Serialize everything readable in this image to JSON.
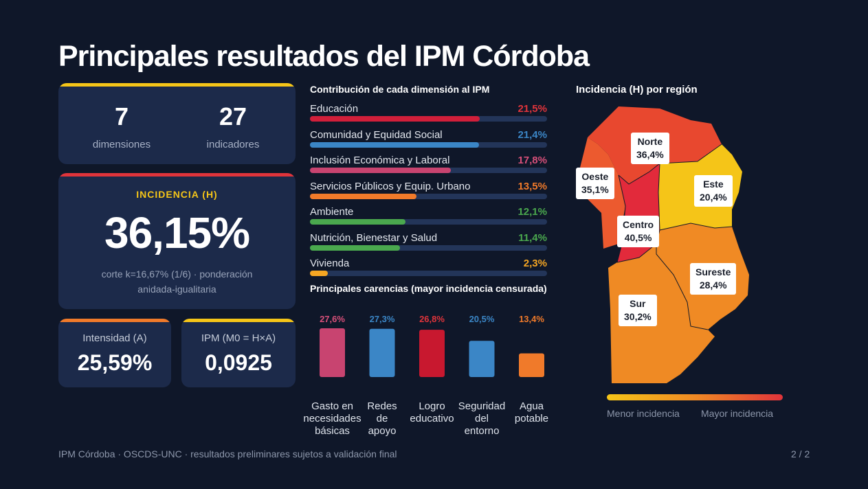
{
  "title": "Principales resultados del IPM Córdoba",
  "colors": {
    "background": "#0f1729",
    "card": "#1c2a4a",
    "yellow": "#f5c518",
    "red": "#e0343b",
    "orange": "#f07a2a"
  },
  "stats": {
    "dimensiones": {
      "value": "7",
      "label": "dimensiones"
    },
    "indicadores": {
      "value": "27",
      "label": "indicadores"
    }
  },
  "incidencia": {
    "label": "INCIDENCIA (H)",
    "value": "36,15%",
    "note_line1": "corte k=16,67% (1/6) · ponderación",
    "note_line2": "anidada-igualitaria"
  },
  "intensidad": {
    "label": "Intensidad (A)",
    "value": "25,59%"
  },
  "ipm": {
    "label": "IPM (M0 = H×A)",
    "value": "0,0925"
  },
  "chart_data": [
    {
      "type": "bar",
      "orientation": "horizontal",
      "title": "Contribución de cada dimensión al IPM",
      "categories": [
        "Educación",
        "Comunidad y Equidad Social",
        "Inclusión Económica y Laboral",
        "Servicios Públicos y Equip. Urbano",
        "Ambiente",
        "Nutrición, Bienestar y Salud",
        "Vivienda"
      ],
      "values": [
        21.5,
        21.4,
        17.8,
        13.5,
        12.1,
        11.4,
        2.3
      ],
      "value_labels": [
        "21,5%",
        "21,4%",
        "17,8%",
        "13,5%",
        "12,1%",
        "11,4%",
        "2,3%"
      ],
      "colors": [
        "#d11f3a",
        "#3b86c6",
        "#c84470",
        "#f07a2a",
        "#4aa84e",
        "#4aa84e",
        "#f5a623"
      ],
      "label_colors": [
        "#e0343b",
        "#3b86c6",
        "#d9507a",
        "#f07a2a",
        "#4aa84e",
        "#4aa84e",
        "#f5a623"
      ],
      "xlim": [
        0,
        30
      ]
    },
    {
      "type": "bar",
      "title": "Principales carencias (mayor incidencia censurada)",
      "categories": [
        [
          "Gasto en",
          "necesidades",
          "básicas"
        ],
        [
          "Redes",
          "de",
          "apoyo"
        ],
        [
          "Logro",
          "educativo"
        ],
        [
          "Seguridad",
          "del",
          "entorno"
        ],
        [
          "Agua",
          "potable"
        ]
      ],
      "values": [
        27.6,
        27.3,
        26.8,
        20.5,
        13.4
      ],
      "value_labels": [
        "27,6%",
        "27,3%",
        "26,8%",
        "20,5%",
        "13,4%"
      ],
      "colors": [
        "#c84470",
        "#3b86c6",
        "#c8182f",
        "#3b86c6",
        "#f07a2a"
      ],
      "label_colors": [
        "#d9507a",
        "#3b86c6",
        "#e0343b",
        "#3b86c6",
        "#f07a2a"
      ],
      "ylim": [
        0,
        28
      ]
    }
  ],
  "map": {
    "title": "Incidencia (H) por región",
    "regions": [
      {
        "name": "Norte",
        "value": "36,4%"
      },
      {
        "name": "Oeste",
        "value": "35,1%"
      },
      {
        "name": "Este",
        "value": "20,4%"
      },
      {
        "name": "Centro",
        "value": "40,5%"
      },
      {
        "name": "Sureste",
        "value": "28,4%"
      },
      {
        "name": "Sur",
        "value": "30,2%"
      }
    ],
    "legend_low": "Menor incidencia",
    "legend_high": "Mayor incidencia"
  },
  "footer": "IPM Córdoba · OSCDS-UNC · resultados preliminares sujetos a validación final",
  "page": "2 / 2"
}
